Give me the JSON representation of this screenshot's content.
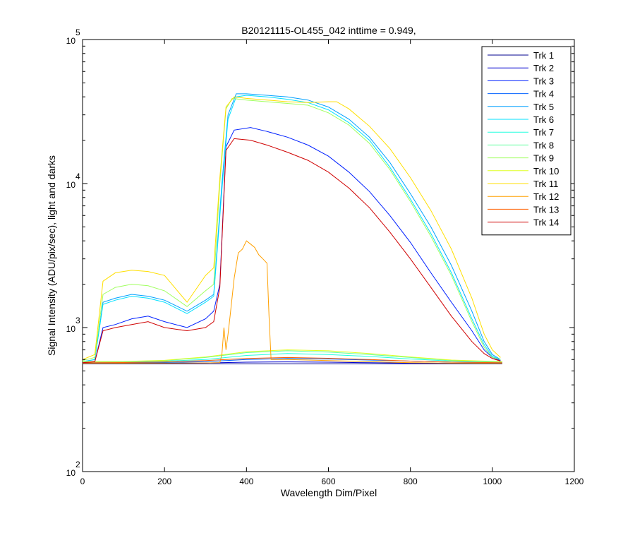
{
  "chart_data": {
    "type": "line",
    "title": "B20121115-OL455_042 inttime = 0.949,",
    "xlabel": "Wavelength Dim/Pixel",
    "ylabel": "Signal Intensity (ADU/pix/sec), light and darks",
    "xlim": [
      0,
      1200
    ],
    "ylim": [
      100,
      100000
    ],
    "yscale": "log",
    "grid": false,
    "legend_position": "top-right",
    "x_ticks": [
      0,
      200,
      400,
      600,
      800,
      1000,
      1200
    ],
    "y_ticks": [
      {
        "value": 100,
        "base": "10",
        "exp": "2"
      },
      {
        "value": 1000,
        "base": "10",
        "exp": "3"
      },
      {
        "value": 10000,
        "base": "10",
        "exp": "4"
      },
      {
        "value": 100000,
        "base": "10",
        "exp": "5"
      }
    ],
    "series": [
      {
        "name": "Trk 1",
        "color": "#00008f",
        "x": [
          0,
          100,
          200,
          300,
          400,
          500,
          600,
          700,
          800,
          900,
          1024
        ],
        "y": [
          560,
          560,
          560,
          560,
          560,
          560,
          560,
          560,
          560,
          560,
          560
        ]
      },
      {
        "name": "Trk 2",
        "color": "#0000cf",
        "x": [
          0,
          100,
          200,
          300,
          400,
          500,
          600,
          700,
          800,
          900,
          1024
        ],
        "y": [
          565,
          565,
          565,
          568,
          575,
          578,
          575,
          570,
          566,
          565,
          565
        ]
      },
      {
        "name": "Trk 3",
        "color": "#0020ff",
        "x": [
          0,
          30,
          50,
          80,
          120,
          160,
          200,
          255,
          300,
          320,
          335,
          350,
          370,
          410,
          450,
          500,
          550,
          600,
          650,
          700,
          750,
          800,
          850,
          900,
          950,
          980,
          1000,
          1020
        ],
        "y": [
          570,
          580,
          1000,
          1050,
          1150,
          1200,
          1100,
          1000,
          1150,
          1300,
          2000,
          18000,
          23500,
          24500,
          23000,
          21000,
          18500,
          15500,
          12000,
          8800,
          6000,
          3900,
          2400,
          1500,
          950,
          700,
          620,
          590
        ]
      },
      {
        "name": "Trk 4",
        "color": "#0060ff",
        "x": [
          0,
          100,
          200,
          300,
          400,
          500,
          600,
          700,
          800,
          900,
          1024
        ],
        "y": [
          570,
          570,
          572,
          580,
          600,
          610,
          605,
          595,
          585,
          575,
          570
        ]
      },
      {
        "name": "Trk 5",
        "color": "#00a0ff",
        "x": [
          0,
          30,
          50,
          80,
          120,
          160,
          200,
          255,
          300,
          320,
          340,
          355,
          375,
          400,
          450,
          500,
          550,
          600,
          650,
          700,
          750,
          800,
          850,
          900,
          950,
          980,
          1000,
          1020
        ],
        "y": [
          580,
          600,
          1500,
          1600,
          1700,
          1650,
          1550,
          1300,
          1550,
          1700,
          10000,
          30000,
          42000,
          42000,
          41000,
          40000,
          38000,
          34000,
          28000,
          21000,
          14000,
          8500,
          5000,
          2700,
          1300,
          800,
          650,
          600
        ]
      },
      {
        "name": "Trk 6",
        "color": "#00e0ff",
        "x": [
          0,
          30,
          50,
          80,
          120,
          160,
          200,
          255,
          300,
          320,
          340,
          355,
          375,
          400,
          450,
          500,
          550,
          600,
          650,
          700,
          750,
          800,
          850,
          900,
          950,
          980,
          1000,
          1020
        ],
        "y": [
          580,
          600,
          1450,
          1550,
          1650,
          1600,
          1500,
          1250,
          1500,
          1650,
          9000,
          28000,
          40000,
          41000,
          40000,
          38500,
          36500,
          32500,
          26500,
          20000,
          13000,
          7800,
          4500,
          2400,
          1150,
          760,
          630,
          600
        ]
      },
      {
        "name": "Trk 7",
        "color": "#20ffdf",
        "x": [
          0,
          100,
          200,
          300,
          400,
          500,
          600,
          700,
          800,
          900,
          1024
        ],
        "y": [
          575,
          578,
          585,
          600,
          640,
          660,
          650,
          630,
          605,
          585,
          575
        ]
      },
      {
        "name": "Trk 8",
        "color": "#60ff9f",
        "x": [
          0,
          100,
          200,
          300,
          400,
          500,
          600,
          700,
          800,
          900,
          1024
        ],
        "y": [
          578,
          580,
          590,
          620,
          670,
          690,
          675,
          650,
          620,
          590,
          578
        ]
      },
      {
        "name": "Trk 9",
        "color": "#a0ff5f",
        "x": [
          0,
          30,
          50,
          80,
          120,
          160,
          200,
          255,
          300,
          320,
          335,
          350,
          365,
          400,
          450,
          500,
          550,
          600,
          650,
          700,
          750,
          800,
          850,
          900,
          950,
          980,
          1000,
          1020
        ],
        "y": [
          590,
          620,
          1700,
          1900,
          2000,
          1950,
          1800,
          1400,
          1800,
          2000,
          10000,
          33000,
          39000,
          38000,
          37000,
          36000,
          35000,
          31000,
          25500,
          19000,
          12500,
          7500,
          4300,
          2300,
          1100,
          730,
          620,
          600
        ]
      },
      {
        "name": "Trk 10",
        "color": "#dfff20",
        "x": [
          0,
          100,
          200,
          300,
          400,
          500,
          600,
          700,
          800,
          900,
          1024
        ],
        "y": [
          580,
          582,
          592,
          625,
          680,
          700,
          690,
          660,
          625,
          595,
          580
        ]
      },
      {
        "name": "Trk 11",
        "color": "#ffdf00",
        "x": [
          0,
          30,
          50,
          80,
          120,
          160,
          200,
          255,
          300,
          320,
          335,
          350,
          370,
          400,
          450,
          500,
          550,
          600,
          620,
          650,
          700,
          750,
          800,
          850,
          900,
          950,
          980,
          1000,
          1020
        ],
        "y": [
          600,
          650,
          2100,
          2400,
          2500,
          2450,
          2300,
          1500,
          2300,
          2600,
          11000,
          34000,
          40000,
          39000,
          38000,
          37000,
          36500,
          37000,
          37000,
          33000,
          25000,
          17500,
          11000,
          6500,
          3500,
          1600,
          900,
          700,
          620
        ]
      },
      {
        "name": "Trk 12",
        "color": "#ffa000",
        "x": [
          0,
          300,
          335,
          340,
          345,
          350,
          355,
          360,
          370,
          380,
          390,
          400,
          410,
          420,
          430,
          440,
          450,
          455,
          460,
          470,
          500,
          600,
          700,
          800,
          900,
          1024
        ],
        "y": [
          565,
          568,
          570,
          650,
          1000,
          700,
          900,
          1200,
          2200,
          3300,
          3500,
          4000,
          3800,
          3600,
          3200,
          3000,
          2800,
          1200,
          600,
          600,
          600,
          590,
          580,
          570,
          566,
          565
        ]
      },
      {
        "name": "Trk 13",
        "color": "#ff6000",
        "x": [
          0,
          100,
          200,
          300,
          400,
          500,
          600,
          700,
          800,
          900,
          1024
        ],
        "y": [
          570,
          572,
          578,
          590,
          610,
          620,
          612,
          600,
          585,
          575,
          570
        ]
      },
      {
        "name": "Trk 14",
        "color": "#cf0000",
        "x": [
          0,
          30,
          50,
          80,
          120,
          160,
          200,
          255,
          300,
          320,
          335,
          350,
          370,
          410,
          450,
          500,
          550,
          600,
          650,
          700,
          750,
          800,
          850,
          900,
          950,
          980,
          1000,
          1020
        ],
        "y": [
          570,
          580,
          950,
          1000,
          1050,
          1100,
          1000,
          950,
          1000,
          1100,
          1900,
          17000,
          20500,
          20000,
          18500,
          16500,
          14500,
          12000,
          9300,
          6800,
          4600,
          3000,
          1900,
          1200,
          800,
          660,
          610,
          585
        ]
      }
    ]
  }
}
